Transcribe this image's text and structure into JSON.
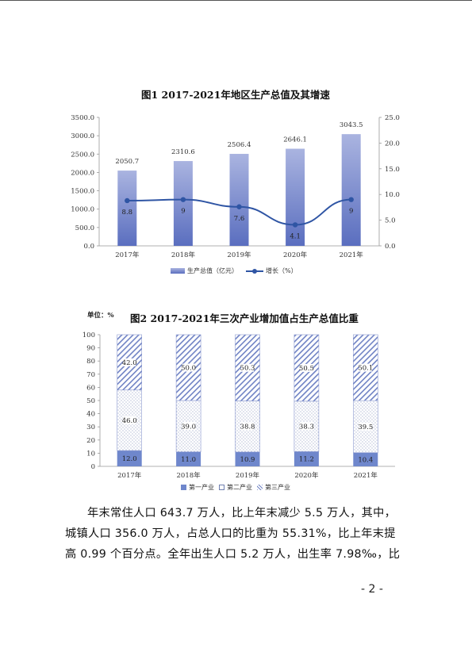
{
  "chart1": {
    "title": "图1 2017-2021年地区生产总值及其增速",
    "legend": {
      "bar_label": "生产总值（亿元）",
      "line_label": "增长（%）"
    },
    "colors": {
      "bar_top": "#aab4e0",
      "bar_bottom": "#5a6ebf",
      "line": "#2f55a4"
    }
  },
  "chart2": {
    "unit_label": "单位：%",
    "title": "图2 2017-2021年三次产业增加值占生产总值比重",
    "legend": [
      "第一产业",
      "第二产业",
      "第三产业"
    ],
    "colors": {
      "primary": "#6f87cc",
      "secondary_dots": "#6f7fb0",
      "tertiary_stripes": "#6f82c4"
    }
  },
  "chart_data": [
    {
      "type": "bar",
      "title": "图1 2017-2021年地区生产总值及其增速",
      "categories": [
        "2017年",
        "2018年",
        "2019年",
        "2020年",
        "2021年"
      ],
      "series": [
        {
          "name": "生产总值（亿元）",
          "type": "bar",
          "axis": "left",
          "values": [
            2050.7,
            2310.6,
            2506.4,
            2646.1,
            3043.5
          ],
          "labels": [
            "2050.7",
            "2310.6",
            "2506.4",
            "2646.1",
            "3043.5"
          ]
        },
        {
          "name": "增长（%）",
          "type": "line",
          "axis": "right",
          "values": [
            8.8,
            9,
            7.6,
            4.1,
            9
          ],
          "labels": [
            "8.8",
            "9",
            "7.6",
            "4.1",
            "9"
          ]
        }
      ],
      "y_left": {
        "min": 0,
        "max": 3500,
        "ticks": [
          "0.0",
          "500.0",
          "1000.0",
          "1500.0",
          "2000.0",
          "2500.0",
          "3000.0",
          "3500.0"
        ]
      },
      "y_right": {
        "min": 0,
        "max": 25,
        "ticks": [
          "0.0",
          "5.0",
          "10.0",
          "15.0",
          "20.0",
          "25.0"
        ]
      },
      "grid": false,
      "legend_position": "bottom"
    },
    {
      "type": "bar",
      "stacked": true,
      "title": "图2 2017-2021年三次产业增加值占生产总值比重",
      "categories": [
        "2017年",
        "2018年",
        "2019年",
        "2020年",
        "2021年"
      ],
      "series": [
        {
          "name": "第一产业",
          "values": [
            12.0,
            11.0,
            10.9,
            11.2,
            10.4
          ],
          "labels": [
            "12.0",
            "11.0",
            "10.9",
            "11.2",
            "10.4"
          ]
        },
        {
          "name": "第二产业",
          "values": [
            46.0,
            39.0,
            38.8,
            38.3,
            39.5
          ],
          "labels": [
            "46.0",
            "39.0",
            "38.8",
            "38.3",
            "39.5"
          ]
        },
        {
          "name": "第三产业",
          "values": [
            42.0,
            50.0,
            50.3,
            50.5,
            50.1
          ],
          "labels": [
            "42.0",
            "50.0",
            "50.3",
            "50.5",
            "50.1"
          ]
        }
      ],
      "y": {
        "min": 0,
        "max": 100,
        "ticks": [
          "0",
          "10",
          "20",
          "30",
          "40",
          "50",
          "60",
          "70",
          "80",
          "90",
          "100"
        ]
      },
      "grid": false,
      "legend_position": "bottom"
    }
  ],
  "paragraph": {
    "lines": [
      "年末常住人口 643.7 万人，比上年末减少 5.5 万人，其中，",
      "城镇人口 356.0 万人，占总人口的比重为 55.31%，比上年末提",
      "高 0.99 个百分点。全年出生人口 5.2 万人，出生率 7.98‰，比"
    ]
  },
  "page_number": "- 2 -"
}
